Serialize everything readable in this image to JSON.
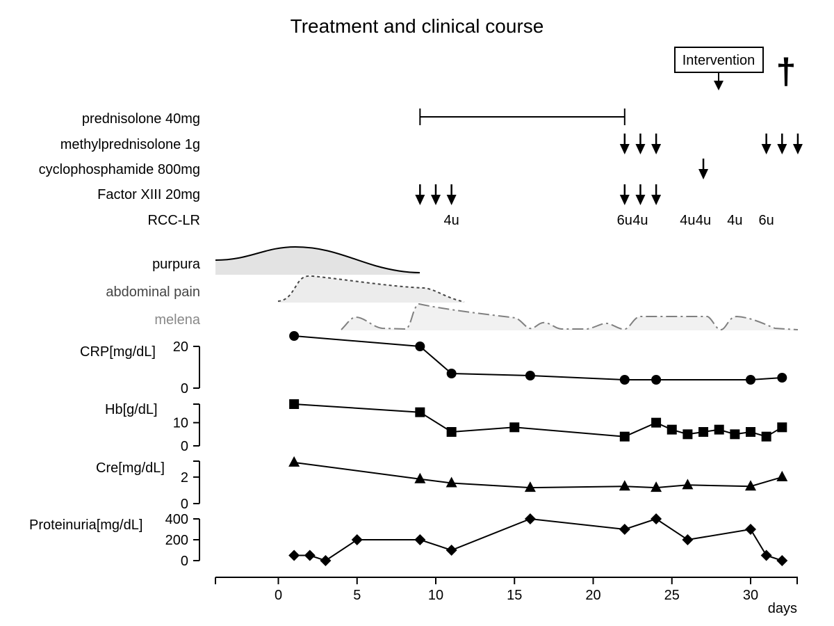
{
  "chart_data": {
    "type": "line",
    "title": "Treatment and clinical course",
    "xlabel": "days",
    "xlim": [
      -4,
      33
    ],
    "xticks": [
      0,
      5,
      10,
      15,
      20,
      25,
      30
    ],
    "annotations": {
      "intervention": {
        "label": "Intervention",
        "day": 28
      },
      "death": {
        "symbol": "†",
        "day": 32.2
      }
    },
    "treatments": [
      {
        "name": "prednisolone 40mg",
        "kind": "span",
        "start": 9,
        "end": 22
      },
      {
        "name": "methylprednisolone 1g",
        "kind": "arrows",
        "days": [
          22,
          23,
          24,
          31,
          32,
          33
        ]
      },
      {
        "name": "cyclophosphamide 800mg",
        "kind": "arrows",
        "days": [
          27
        ]
      },
      {
        "name": "Factor XIII 20mg",
        "kind": "arrows",
        "days": [
          9,
          10,
          11,
          22,
          23,
          24
        ]
      },
      {
        "name": "RCC-LR",
        "kind": "units",
        "doses": [
          {
            "day": 11,
            "label": "4u"
          },
          {
            "day": 22,
            "label": "6u"
          },
          {
            "day": 23,
            "label": "4u"
          },
          {
            "day": 26,
            "label": "4u"
          },
          {
            "day": 27,
            "label": "4u"
          },
          {
            "day": 29,
            "label": "4u"
          },
          {
            "day": 31,
            "label": "6u"
          }
        ]
      }
    ],
    "symptoms": [
      {
        "name": "purpura",
        "color": "#000000",
        "fill": "#e3e3e3",
        "style": "solid",
        "start": -4,
        "end": 9
      },
      {
        "name": "abdominal pain",
        "color": "#444444",
        "fill": "#ececec",
        "style": "dashed",
        "start": 0,
        "end": 12
      },
      {
        "name": "melena",
        "color": "#808080",
        "fill": "#f1f1f1",
        "style": "dashdot",
        "start": 4,
        "end": 33
      }
    ],
    "series": [
      {
        "name": "CRP[mg/dL]",
        "marker": "circle",
        "ylim": [
          0,
          20
        ],
        "yticks": [
          0,
          20
        ],
        "x": [
          1,
          9,
          11,
          16,
          22,
          24,
          30,
          32
        ],
        "values": [
          25,
          20,
          7,
          6,
          4,
          4,
          4,
          5
        ]
      },
      {
        "name": "Hb[g/dL]",
        "marker": "square",
        "ylim": [
          0,
          18
        ],
        "yticks": [
          0,
          10
        ],
        "x": [
          1,
          9,
          11,
          15,
          22,
          24,
          25,
          26,
          27,
          28,
          29,
          30,
          31,
          32
        ],
        "values": [
          18,
          14.5,
          6,
          8,
          4,
          10,
          7,
          5,
          6,
          7,
          5,
          6,
          4,
          8
        ]
      },
      {
        "name": "Cre[mg/dL]",
        "marker": "triangle",
        "ylim": [
          0,
          3.2
        ],
        "yticks": [
          0,
          2
        ],
        "x": [
          1,
          9,
          11,
          16,
          22,
          24,
          26,
          30,
          32
        ],
        "values": [
          3.1,
          1.85,
          1.55,
          1.2,
          1.3,
          1.2,
          1.4,
          1.3,
          2.0
        ]
      },
      {
        "name": "Proteinuria[mg/dL]",
        "marker": "diamond",
        "ylim": [
          0,
          400
        ],
        "yticks": [
          0,
          200,
          400
        ],
        "x": [
          1,
          2,
          3,
          5,
          9,
          11,
          16,
          22,
          24,
          26,
          30,
          31,
          32
        ],
        "values": [
          50,
          50,
          0,
          200,
          200,
          100,
          400,
          300,
          400,
          200,
          300,
          50,
          0
        ]
      }
    ]
  }
}
